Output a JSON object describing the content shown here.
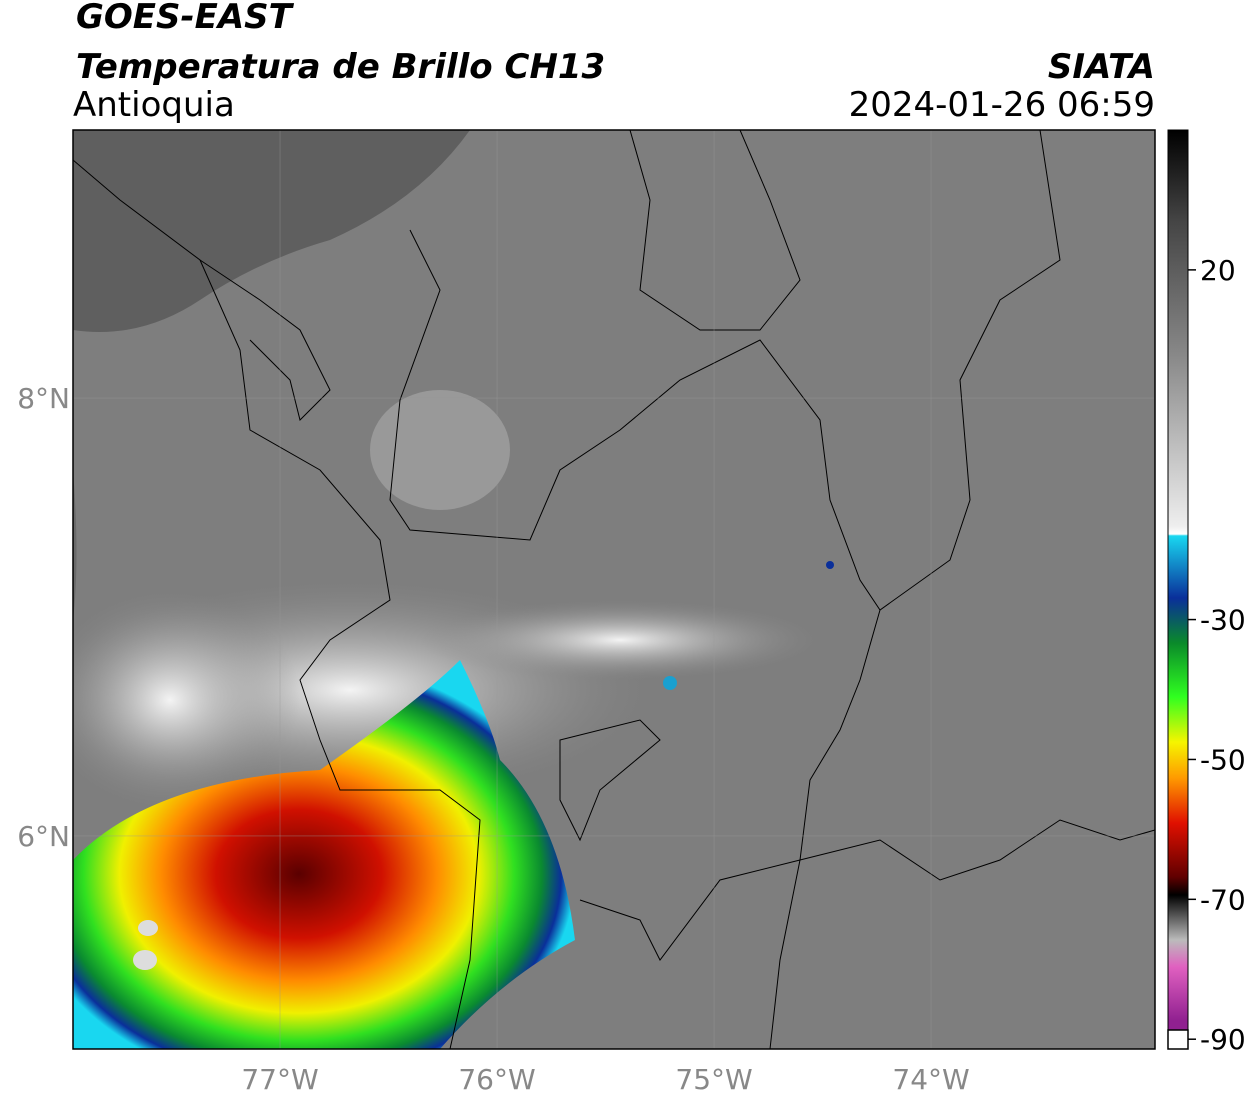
{
  "header": {
    "title": "GOES-EAST",
    "subtitle": "Temperatura de Brillo CH13",
    "region": "Antioquia",
    "source": "SIATA",
    "timestamp": "2024-01-26 06:59"
  },
  "map": {
    "xlim": [
      -77.954,
      -72.968
    ],
    "ylim": [
      5.027,
      9.224
    ],
    "xticks": [
      {
        "value": -77,
        "label": "77°W"
      },
      {
        "value": -76,
        "label": "76°W"
      },
      {
        "value": -75,
        "label": "75°W"
      },
      {
        "value": -74,
        "label": "74°W"
      }
    ],
    "yticks": [
      {
        "value": 8,
        "label": "8°N"
      },
      {
        "value": 6,
        "label": "6°N"
      }
    ],
    "grid": true
  },
  "colorbar": {
    "lim": [
      -91.4,
      40
    ],
    "ticks": [
      20,
      -30,
      -50,
      -70,
      -90
    ]
  }
}
